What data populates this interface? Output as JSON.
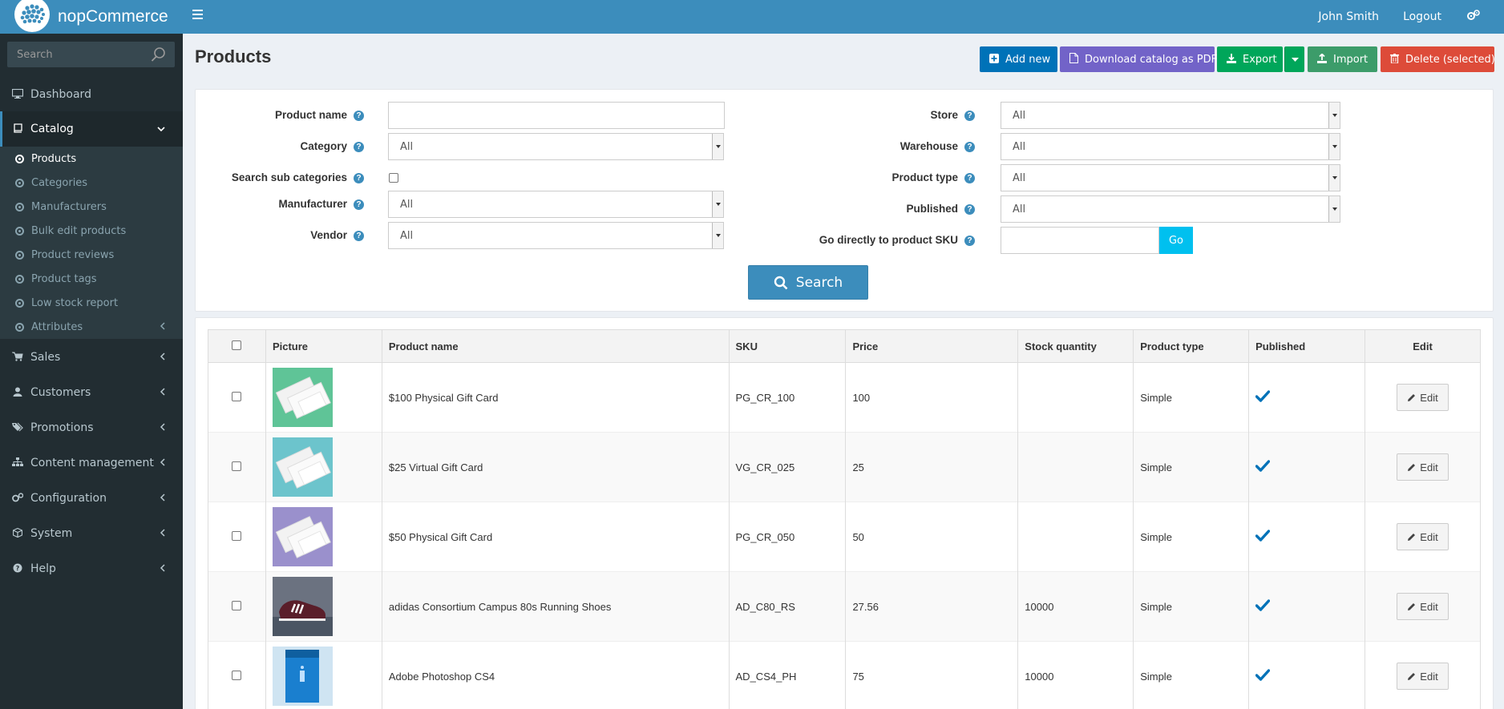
{
  "header": {
    "brand": "nopCommerce",
    "user": "John Smith",
    "logout": "Logout"
  },
  "sidebar": {
    "search_placeholder": "Search",
    "dashboard": "Dashboard",
    "catalog": "Catalog",
    "catalog_items": [
      "Products",
      "Categories",
      "Manufacturers",
      "Bulk edit products",
      "Product reviews",
      "Product tags",
      "Low stock report",
      "Attributes"
    ],
    "sales": "Sales",
    "customers": "Customers",
    "promotions": "Promotions",
    "content_management": "Content management",
    "configuration": "Configuration",
    "system": "System",
    "help": "Help"
  },
  "page": {
    "title": "Products"
  },
  "toolbar": {
    "add_new": "Add new",
    "download_pdf": "Download catalog as PDF",
    "export": "Export",
    "import": "Import",
    "delete_selected": "Delete (selected)"
  },
  "filters": {
    "product_name_label": "Product name",
    "product_name_value": "",
    "category_label": "Category",
    "category_value": "All",
    "search_sub_label": "Search sub categories",
    "manufacturer_label": "Manufacturer",
    "manufacturer_value": "All",
    "vendor_label": "Vendor",
    "vendor_value": "All",
    "store_label": "Store",
    "store_value": "All",
    "warehouse_label": "Warehouse",
    "warehouse_value": "All",
    "product_type_label": "Product type",
    "product_type_value": "All",
    "published_label": "Published",
    "published_value": "All",
    "sku_label": "Go directly to product SKU",
    "sku_value": "",
    "go": "Go",
    "search": "Search"
  },
  "table": {
    "columns": [
      "Picture",
      "Product name",
      "SKU",
      "Price",
      "Stock quantity",
      "Product type",
      "Published",
      "Edit"
    ],
    "rows": [
      {
        "name": "$100 Physical Gift Card",
        "sku": "PG_CR_100",
        "price": "100",
        "stock": "",
        "type": "Simple",
        "published": true,
        "edit": "Edit",
        "thumb": "#5fc497"
      },
      {
        "name": "$25 Virtual Gift Card",
        "sku": "VG_CR_025",
        "price": "25",
        "stock": "",
        "type": "Simple",
        "published": true,
        "edit": "Edit",
        "thumb": "#6cc4cc"
      },
      {
        "name": "$50 Physical Gift Card",
        "sku": "PG_CR_050",
        "price": "50",
        "stock": "",
        "type": "Simple",
        "published": true,
        "edit": "Edit",
        "thumb": "#9a90cc"
      },
      {
        "name": "adidas Consortium Campus 80s Running Shoes",
        "sku": "AD_C80_RS",
        "price": "27.56",
        "stock": "10000",
        "type": "Simple",
        "published": true,
        "edit": "Edit",
        "thumb": "#5a5f6a"
      },
      {
        "name": "Adobe Photoshop CS4",
        "sku": "AD_CS4_PH",
        "price": "75",
        "stock": "10000",
        "type": "Simple",
        "published": true,
        "edit": "Edit",
        "thumb": "#4aa3d9"
      }
    ]
  },
  "colors": {
    "header": "#3c8dbc",
    "sidebar": "#222d32",
    "primary": "#0072b8",
    "purple": "#7263c8",
    "green": "#00a65a",
    "red": "#dd4b39",
    "go": "#00c0ef"
  }
}
